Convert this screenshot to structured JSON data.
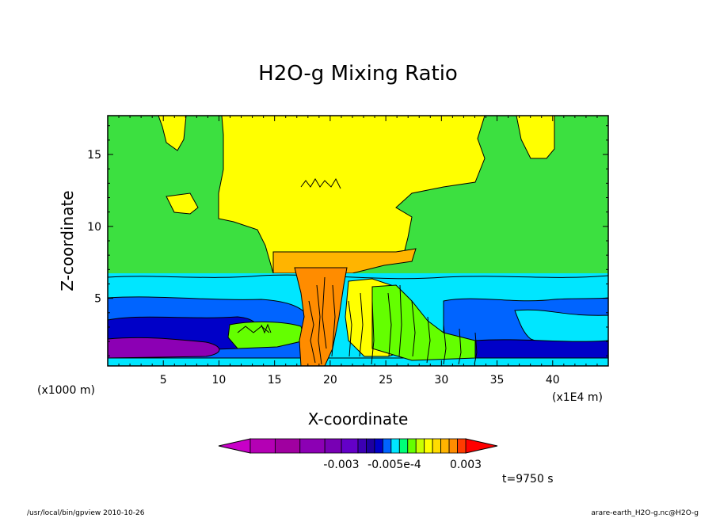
{
  "chart_data": {
    "type": "heatmap",
    "title": "H2O-g Mixing Ratio",
    "xlabel": "X-coordinate",
    "ylabel": "Z-coordinate",
    "x_unit_left": "(x1000 m)",
    "x_unit_right": "(x1E4 m)",
    "x_ticks": [
      "5",
      "10",
      "15",
      "20",
      "25",
      "30",
      "35",
      "40"
    ],
    "x_tick_values": [
      5,
      10,
      15,
      20,
      25,
      30,
      35,
      40
    ],
    "y_ticks": [
      "5",
      "10",
      "15"
    ],
    "y_tick_values": [
      5,
      10,
      15
    ],
    "xlim": [
      0,
      45
    ],
    "ylim": [
      0.3,
      17.7
    ],
    "colorbar": {
      "colors": [
        "#c800c8",
        "#b400b4",
        "#a000a0",
        "#8c00b4",
        "#7800b4",
        "#6400c8",
        "#3c00b4",
        "#1e00a0",
        "#0000c8",
        "#0064ff",
        "#00e6ff",
        "#00ff78",
        "#64ff00",
        "#c8ff00",
        "#ffff00",
        "#ffdc00",
        "#ffb400",
        "#ff8c00",
        "#ff3c00",
        "#ff0000"
      ],
      "labels": [
        "-0.003",
        "-0.005e-4",
        "0.003"
      ]
    },
    "regions": [
      {
        "level": "lowest (dark purple)",
        "approx_z": [
          0.5,
          1.5
        ],
        "x": [
          0,
          10
        ]
      },
      {
        "level": "blue",
        "approx_z": [
          0.5,
          5.0
        ],
        "x": [
          0,
          45
        ]
      },
      {
        "level": "cyan",
        "approx_z": [
          4.5,
          6.5
        ],
        "x": [
          0,
          45
        ]
      },
      {
        "level": "green",
        "approx_z": [
          6.0,
          17.7
        ],
        "x": [
          0,
          45
        ]
      },
      {
        "level": "yellow anvil",
        "approx_z": [
          8.0,
          17.7
        ],
        "x": [
          10,
          34
        ]
      },
      {
        "level": "orange core",
        "approx_z": [
          0.5,
          8.5
        ],
        "x": [
          17,
          26
        ]
      }
    ]
  },
  "time_label": "t=9750 s",
  "footer_left": "/usr/local/bin/gpview  2010-10-26",
  "footer_right": "arare-earth_H2O-g.nc@H2O-g"
}
